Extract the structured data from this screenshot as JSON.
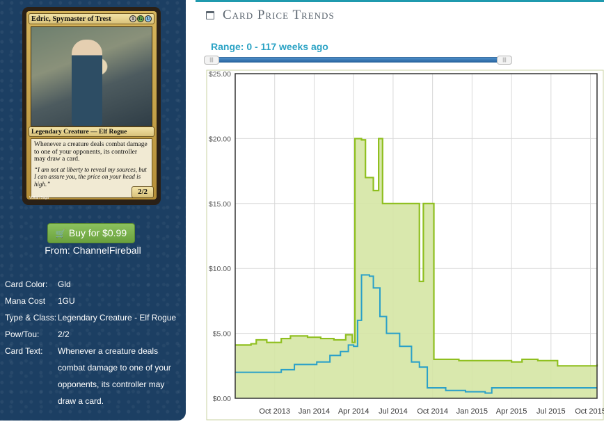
{
  "card": {
    "name": "Edric, Spymaster of Trest",
    "mana_symbols": [
      "1",
      "G",
      "U"
    ],
    "type_line": "Legendary Creature — Elf Rogue",
    "rules_text": "Whenever a creature deals combat damage to one of your opponents, its controller may draw a card.",
    "flavor_text": "“I am not at liberty to reveal my sources, but I can assure you, the price on your head is high.”",
    "pt": "2/2",
    "artist": "Volkan Baga"
  },
  "buy": {
    "label": "Buy for $0.99",
    "from": "From: ChannelFireball"
  },
  "info": [
    {
      "key": "Card Color:",
      "value": "Gld"
    },
    {
      "key": "Mana Cost",
      "value": "1GU"
    },
    {
      "key": "Type & Class:",
      "value": "Legendary Creature - Elf Rogue"
    },
    {
      "key": "Pow/Tou:",
      "value": "2/2"
    },
    {
      "key": "Card Text:",
      "value": "Whenever a creature deals combat damage to one of your opponents, its controller may draw a card."
    }
  ],
  "page": {
    "heading": "Card Price Trends",
    "range_label": "Range: 0 - 117 weeks ago"
  },
  "colors": {
    "sidebar": "#1c3f63",
    "buy_green": "#7ab24c",
    "accent": "#1f9aae",
    "series_high": "#8fbf1f",
    "series_low": "#2aa0c8",
    "fill": "#d5e6a4"
  },
  "chart_data": {
    "type": "line",
    "yticks": [
      "$0.00",
      "$5.00",
      "$10.00",
      "$15.00",
      "$20.00",
      "$25.00"
    ],
    "ylim": [
      0,
      25
    ],
    "xticks": [
      {
        "label": "Oct 2013",
        "t": 3
      },
      {
        "label": "Jan 2014",
        "t": 6
      },
      {
        "label": "Apr 2014",
        "t": 9
      },
      {
        "label": "Jul 2014",
        "t": 12
      },
      {
        "label": "Oct 2014",
        "t": 15
      },
      {
        "label": "Jan 2015",
        "t": 18
      },
      {
        "label": "Apr 2015",
        "t": 21
      },
      {
        "label": "Jul 2015",
        "t": 24
      },
      {
        "label": "Oct 2015",
        "t": 27
      }
    ],
    "xlim": [
      0,
      27.5
    ],
    "series": [
      {
        "values": [
          [
            0,
            4.1
          ],
          [
            1.2,
            4.2
          ],
          [
            1.6,
            4.5
          ],
          [
            2.4,
            4.3
          ],
          [
            3.5,
            4.6
          ],
          [
            4.2,
            4.8
          ],
          [
            5.5,
            4.7
          ],
          [
            6.5,
            4.6
          ],
          [
            7.5,
            4.5
          ],
          [
            8.4,
            4.9
          ],
          [
            8.9,
            4.3
          ],
          [
            9.1,
            20
          ],
          [
            9.6,
            19.9
          ],
          [
            9.9,
            17
          ],
          [
            10.5,
            16
          ],
          [
            10.9,
            20
          ],
          [
            11.2,
            15
          ],
          [
            12.3,
            15
          ],
          [
            13.8,
            15
          ],
          [
            14.0,
            9
          ],
          [
            14.3,
            15
          ],
          [
            15.0,
            15
          ],
          [
            15.1,
            3.0
          ],
          [
            17,
            2.9
          ],
          [
            20,
            2.9
          ],
          [
            21,
            2.8
          ],
          [
            21.8,
            3.0
          ],
          [
            23,
            2.9
          ],
          [
            24.5,
            2.5
          ],
          [
            27.5,
            2.6
          ]
        ]
      },
      {
        "values": [
          [
            0,
            2.0
          ],
          [
            2.5,
            2.0
          ],
          [
            3.5,
            2.2
          ],
          [
            4.5,
            2.6
          ],
          [
            6.2,
            2.8
          ],
          [
            7.2,
            3.3
          ],
          [
            8.0,
            3.6
          ],
          [
            8.6,
            4.1
          ],
          [
            9.0,
            4.0
          ],
          [
            9.3,
            6
          ],
          [
            9.6,
            9.5
          ],
          [
            10.2,
            9.4
          ],
          [
            10.5,
            8.5
          ],
          [
            11.0,
            6.3
          ],
          [
            11.5,
            5.0
          ],
          [
            12.5,
            4.0
          ],
          [
            13.4,
            2.8
          ],
          [
            14.0,
            2.4
          ],
          [
            14.4,
            2.4
          ],
          [
            14.6,
            0.8
          ],
          [
            16,
            0.6
          ],
          [
            17.5,
            0.5
          ],
          [
            19,
            0.4
          ],
          [
            19.5,
            0.8
          ],
          [
            23,
            0.8
          ],
          [
            27.5,
            0.8
          ]
        ]
      }
    ]
  }
}
